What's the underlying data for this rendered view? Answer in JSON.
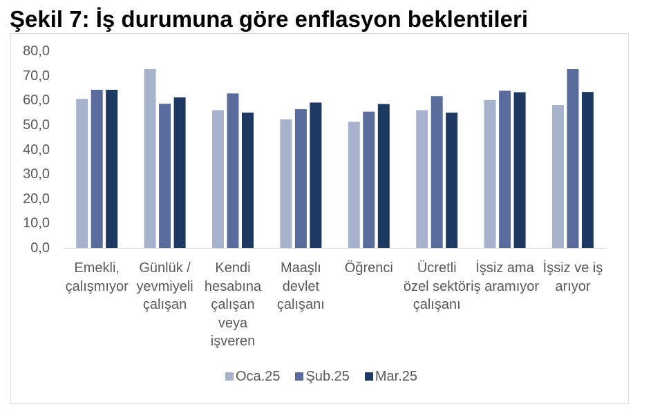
{
  "chart_data": {
    "type": "bar",
    "title": "Şekil 7: İş durumuna göre enflasyon beklentileri",
    "categories": [
      "Emekli,\nçalışmıyor",
      "Günlük /\nyevmiyeli\nçalışan",
      "Kendi\nhesabına\nçalışan\nveya\nişveren",
      "Maaşlı\ndevlet\nçalışanı",
      "Öğrenci",
      "Ücretli\nözel sektör\nçalışanı",
      "İşsiz ama\niş aramıyor",
      "İşsiz ve iş\narıyor"
    ],
    "series": [
      {
        "name": "Oca.25",
        "color": "#A7B2CD",
        "values": [
          60.6,
          72.7,
          56.0,
          52.3,
          51.3,
          56.0,
          60.1,
          58.1
        ]
      },
      {
        "name": "Şub.25",
        "color": "#5A6C9C",
        "values": [
          64.3,
          58.6,
          62.8,
          56.4,
          55.4,
          61.7,
          63.9,
          72.7
        ]
      },
      {
        "name": "Mar.25",
        "color": "#1D3961",
        "values": [
          64.3,
          61.2,
          55.0,
          59.1,
          58.5,
          55.0,
          63.3,
          63.4
        ]
      }
    ],
    "ylim": [
      0,
      80
    ],
    "yticks": [
      0,
      10,
      20,
      30,
      40,
      50,
      60,
      70,
      80
    ],
    "ytick_labels": [
      "0,0",
      "10,0",
      "20,0",
      "30,0",
      "40,0",
      "50,0",
      "60,0",
      "70,0",
      "80,0"
    ],
    "grid": false,
    "legend": "bottom"
  }
}
